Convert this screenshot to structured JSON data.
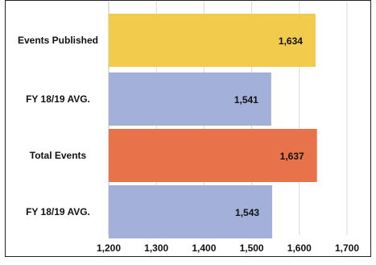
{
  "chart_data": {
    "type": "bar",
    "orientation": "horizontal",
    "categories": [
      "Events Published",
      "FY 18/19 AVG.",
      "Total Events",
      "FY 18/19 AVG."
    ],
    "values": [
      1634,
      1541,
      1637,
      1543
    ],
    "value_labels": [
      "1,634",
      "1,541",
      "1,637",
      "1,543"
    ],
    "bar_colors": [
      "#f2cb4c",
      "#a3b0da",
      "#e8734a",
      "#a3b0da"
    ],
    "xlim": [
      1200,
      1700
    ],
    "xticks": [
      1200,
      1300,
      1400,
      1500,
      1600,
      1700
    ],
    "xtick_labels": [
      "1,200",
      "1,300",
      "1,400",
      "1,500",
      "1,600",
      "1,700"
    ],
    "grid": "vertical",
    "legend": "none",
    "title": "",
    "xlabel": "",
    "ylabel": ""
  }
}
